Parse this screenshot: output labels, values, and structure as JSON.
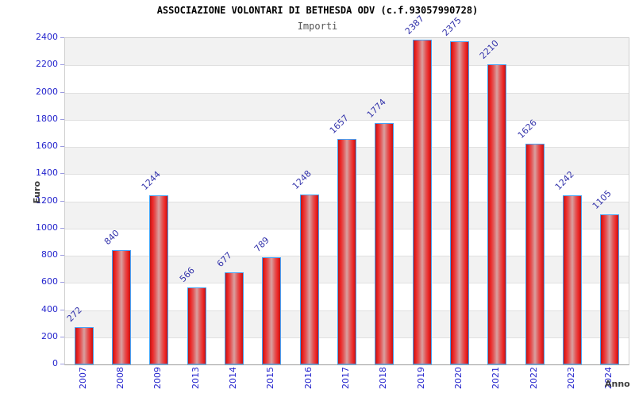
{
  "header": {
    "title": "ASSOCIAZIONE VOLONTARI DI BETHESDA ODV (c.f.93057990728)",
    "subtitle": "Importi"
  },
  "chart_data": {
    "type": "bar",
    "title": "ASSOCIAZIONE VOLONTARI DI BETHESDA ODV (c.f.93057990728)",
    "subtitle": "Importi",
    "xlabel": "Anno",
    "ylabel": "Euro",
    "categories": [
      "2007",
      "2008",
      "2009",
      "2013",
      "2014",
      "2015",
      "2016",
      "2017",
      "2018",
      "2019",
      "2020",
      "2021",
      "2022",
      "2023",
      "2024"
    ],
    "values": [
      272,
      840,
      1244,
      566,
      677,
      789,
      1248,
      1657,
      1774,
      2387,
      2375,
      2210,
      1626,
      1242,
      1105
    ],
    "ylim": [
      0,
      2400
    ],
    "ytick_step": 200,
    "yticks": [
      0,
      200,
      400,
      600,
      800,
      1000,
      1200,
      1400,
      1600,
      1800,
      2000,
      2200,
      2400
    ],
    "grid": "horizontal-bands",
    "legend": "none",
    "colors": {
      "bar_fill": "#ee2525",
      "bar_fill_center": "#d9a0a0",
      "bar_border": "#46a2f8",
      "axis_label_text": "#2424cd",
      "value_label_text": "#3434ab",
      "band_gray": "#f2f2f2",
      "band_white": "#ffffff",
      "gridline": "#e0e0e0",
      "title_text": "#000000",
      "subtitle_text": "#555555"
    }
  }
}
